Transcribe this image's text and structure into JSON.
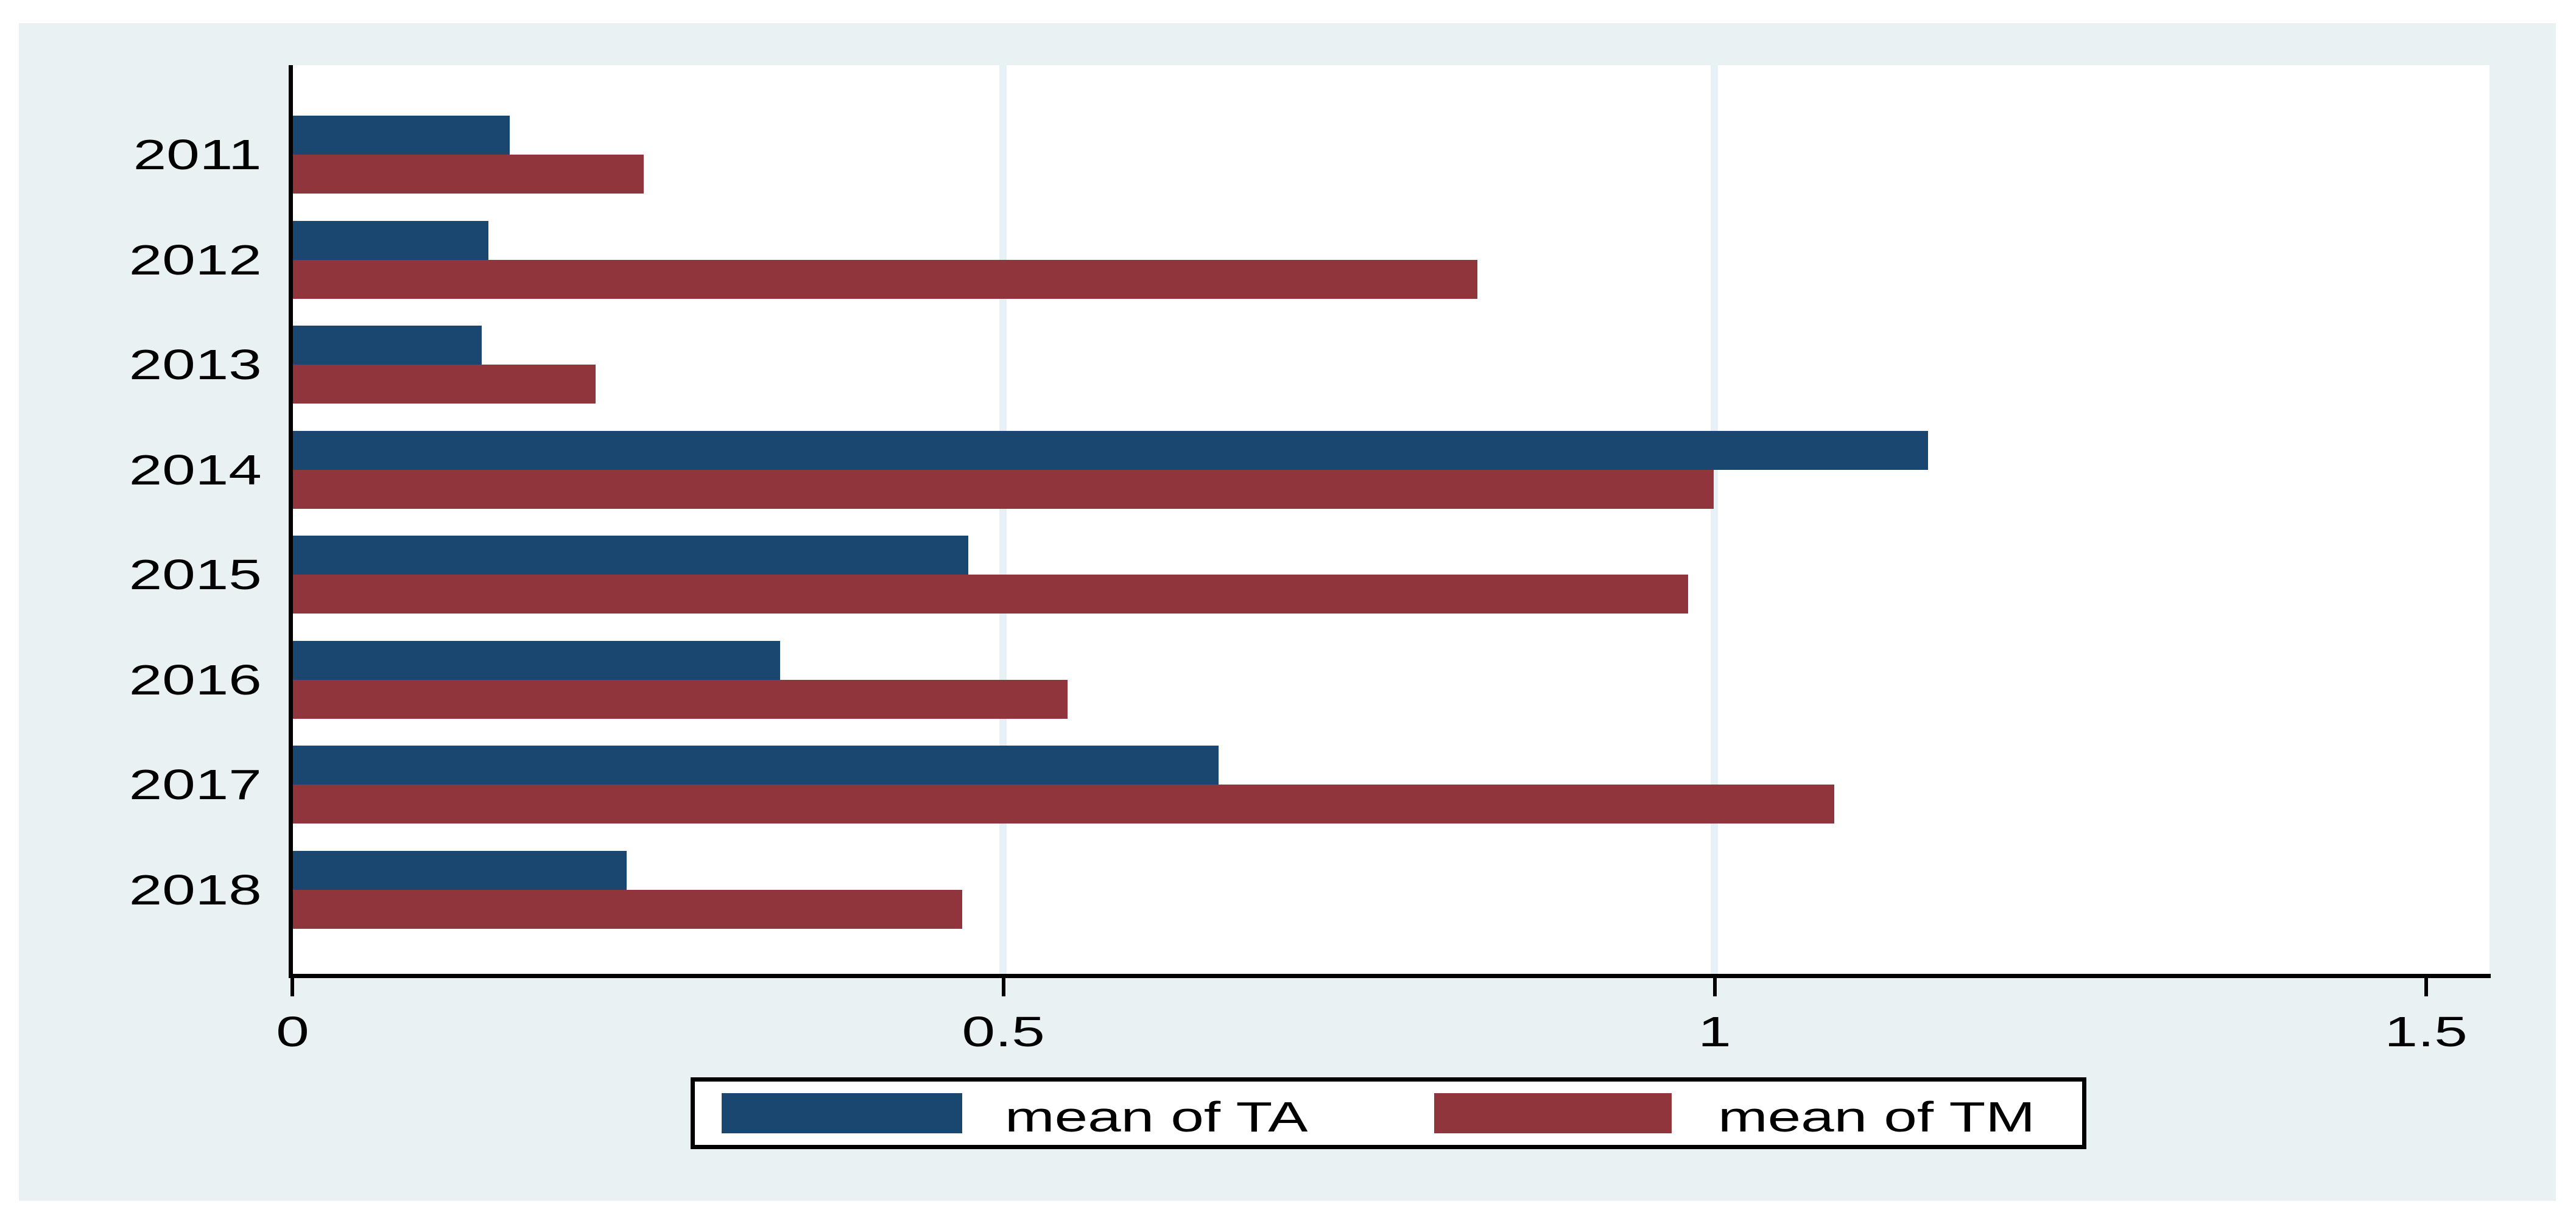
{
  "chart_data": {
    "type": "bar",
    "orientation": "horizontal",
    "title": "",
    "categories": [
      "2011",
      "2012",
      "2013",
      "2014",
      "2015",
      "2016",
      "2017",
      "2018"
    ],
    "series": [
      {
        "name": "mean of TA",
        "color": "#1a476f",
        "values": [
          0.153,
          0.138,
          0.133,
          1.15,
          0.475,
          0.343,
          0.651,
          0.235
        ]
      },
      {
        "name": "mean of TM",
        "color": "#90353b",
        "values": [
          0.247,
          0.833,
          0.213,
          0.999,
          0.981,
          0.545,
          1.084,
          0.471
        ]
      }
    ],
    "x_axis": {
      "tick_labels": [
        "0",
        "0.5",
        "1",
        "1.5"
      ],
      "tick_values": [
        0,
        0.5,
        1,
        1.5
      ],
      "min": 0,
      "max": 1.545,
      "gridline_values": [
        0.5,
        1
      ]
    },
    "y_axis": {
      "tick_labels": [
        "2011",
        "2012",
        "2013",
        "2014",
        "2015",
        "2016",
        "2017",
        "2018"
      ]
    },
    "legend": {
      "position": "bottom",
      "entries": [
        {
          "label": "mean of TA",
          "color": "#1a476f"
        },
        {
          "label": "mean of TM",
          "color": "#90353b"
        }
      ]
    },
    "colors": {
      "panel_background": "#eaf1f3",
      "plot_background": "#ffffff",
      "gridline": "#e7f0f5",
      "axis": "#000000",
      "text": "#000000"
    }
  }
}
